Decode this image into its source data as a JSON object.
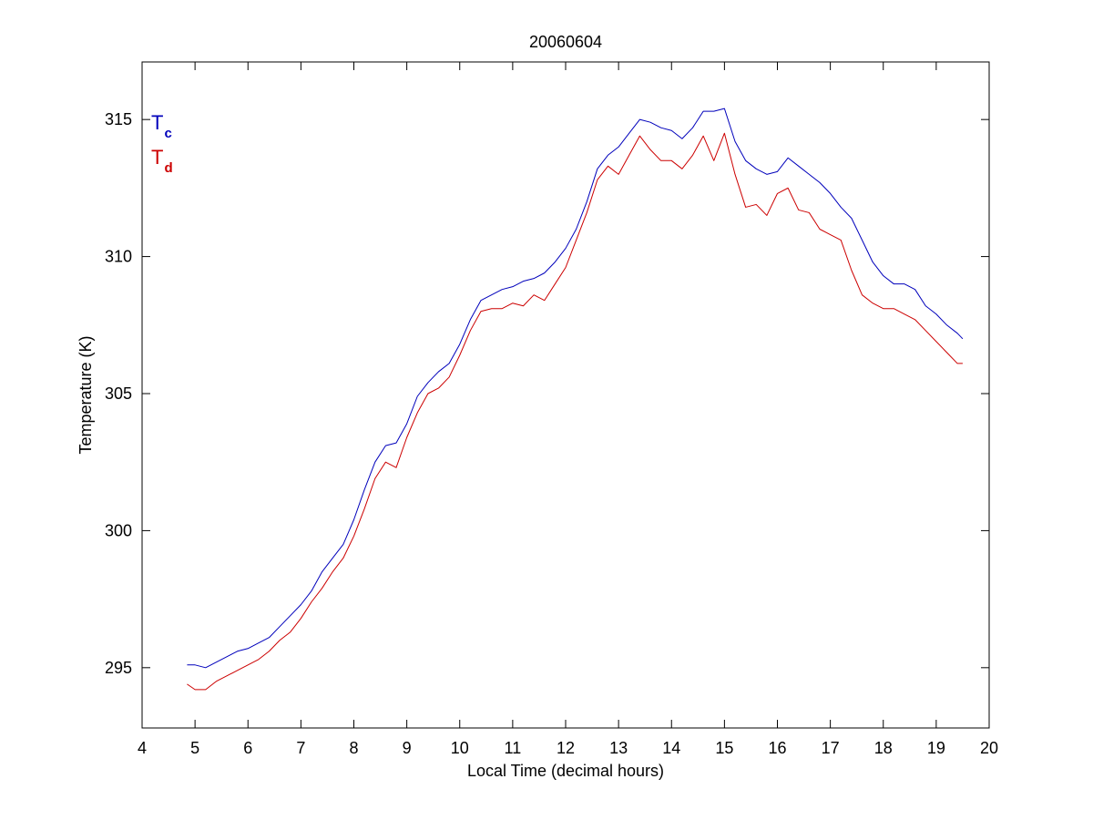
{
  "colors": {
    "series_tc": "#0000bb",
    "series_td": "#cc0000",
    "axis": "#000000",
    "background": "#ffffff"
  },
  "chart_data": {
    "type": "line",
    "title": "20060604",
    "xlabel": "Local Time (decimal hours)",
    "ylabel": "Temperature (K)",
    "xlim": [
      4,
      20
    ],
    "ylim": [
      292.8,
      317.1
    ],
    "xticks": [
      4,
      5,
      6,
      7,
      8,
      9,
      10,
      11,
      12,
      13,
      14,
      15,
      16,
      17,
      18,
      19,
      20
    ],
    "yticks": [
      295,
      300,
      305,
      310,
      315
    ],
    "grid": false,
    "legend": {
      "placement": "top-left",
      "entries": [
        {
          "main": "T",
          "sub": "c",
          "color": "#0000bb"
        },
        {
          "main": "T",
          "sub": "d",
          "color": "#cc0000"
        }
      ]
    },
    "series": [
      {
        "key": "Tc",
        "color": "#0000bb",
        "x": [
          4.85,
          5.0,
          5.2,
          5.4,
          5.6,
          5.8,
          6.0,
          6.2,
          6.4,
          6.6,
          6.8,
          7.0,
          7.2,
          7.4,
          7.6,
          7.8,
          8.0,
          8.2,
          8.4,
          8.6,
          8.8,
          9.0,
          9.2,
          9.4,
          9.6,
          9.8,
          10.0,
          10.2,
          10.4,
          10.6,
          10.8,
          11.0,
          11.2,
          11.4,
          11.6,
          11.8,
          12.0,
          12.2,
          12.4,
          12.6,
          12.8,
          13.0,
          13.2,
          13.4,
          13.6,
          13.8,
          14.0,
          14.2,
          14.4,
          14.6,
          14.8,
          15.0,
          15.2,
          15.4,
          15.6,
          15.8,
          16.0,
          16.2,
          16.4,
          16.6,
          16.8,
          17.0,
          17.2,
          17.4,
          17.6,
          17.8,
          18.0,
          18.2,
          18.4,
          18.6,
          18.8,
          19.0,
          19.2,
          19.4,
          19.5
        ],
        "y": [
          295.1,
          295.1,
          295.0,
          295.2,
          295.4,
          295.6,
          295.7,
          295.9,
          296.1,
          296.5,
          296.9,
          297.3,
          297.8,
          298.5,
          299.0,
          299.5,
          300.4,
          301.5,
          302.5,
          303.1,
          303.2,
          303.9,
          304.9,
          305.4,
          305.8,
          306.1,
          306.8,
          307.7,
          308.4,
          308.6,
          308.8,
          308.9,
          309.1,
          309.2,
          309.4,
          309.8,
          310.3,
          311.0,
          312.0,
          313.2,
          313.7,
          314.0,
          314.5,
          315.0,
          314.9,
          314.7,
          314.6,
          314.3,
          314.7,
          315.3,
          315.3,
          315.4,
          314.2,
          313.5,
          313.2,
          313.0,
          313.1,
          313.6,
          313.3,
          313.0,
          312.7,
          312.3,
          311.8,
          311.4,
          310.6,
          309.8,
          309.3,
          309.0,
          309.0,
          308.8,
          308.2,
          307.9,
          307.5,
          307.2,
          307.0
        ]
      },
      {
        "key": "Td",
        "color": "#cc0000",
        "x": [
          4.85,
          5.0,
          5.2,
          5.4,
          5.6,
          5.8,
          6.0,
          6.2,
          6.4,
          6.6,
          6.8,
          7.0,
          7.2,
          7.4,
          7.6,
          7.8,
          8.0,
          8.2,
          8.4,
          8.6,
          8.8,
          9.0,
          9.2,
          9.4,
          9.6,
          9.8,
          10.0,
          10.2,
          10.4,
          10.6,
          10.8,
          11.0,
          11.2,
          11.4,
          11.6,
          11.8,
          12.0,
          12.2,
          12.4,
          12.6,
          12.8,
          13.0,
          13.2,
          13.4,
          13.6,
          13.8,
          14.0,
          14.2,
          14.4,
          14.6,
          14.8,
          15.0,
          15.2,
          15.4,
          15.6,
          15.8,
          16.0,
          16.2,
          16.4,
          16.6,
          16.8,
          17.0,
          17.2,
          17.4,
          17.6,
          17.8,
          18.0,
          18.2,
          18.4,
          18.6,
          18.8,
          19.0,
          19.2,
          19.4,
          19.5
        ],
        "y": [
          294.4,
          294.2,
          294.2,
          294.5,
          294.7,
          294.9,
          295.1,
          295.3,
          295.6,
          296.0,
          296.3,
          296.8,
          297.4,
          297.9,
          298.5,
          299.0,
          299.8,
          300.8,
          301.9,
          302.5,
          302.3,
          303.4,
          304.3,
          305.0,
          305.2,
          305.6,
          306.4,
          307.3,
          308.0,
          308.1,
          308.1,
          308.3,
          308.2,
          308.6,
          308.4,
          309.0,
          309.6,
          310.6,
          311.6,
          312.8,
          313.3,
          313.0,
          313.7,
          314.4,
          313.9,
          313.5,
          313.5,
          313.2,
          313.7,
          314.4,
          313.5,
          314.5,
          313.0,
          311.8,
          311.9,
          311.5,
          312.3,
          312.5,
          311.7,
          311.6,
          311.0,
          310.8,
          310.6,
          309.5,
          308.6,
          308.3,
          308.1,
          308.1,
          307.9,
          307.7,
          307.3,
          306.9,
          306.5,
          306.1,
          306.1
        ]
      }
    ]
  }
}
